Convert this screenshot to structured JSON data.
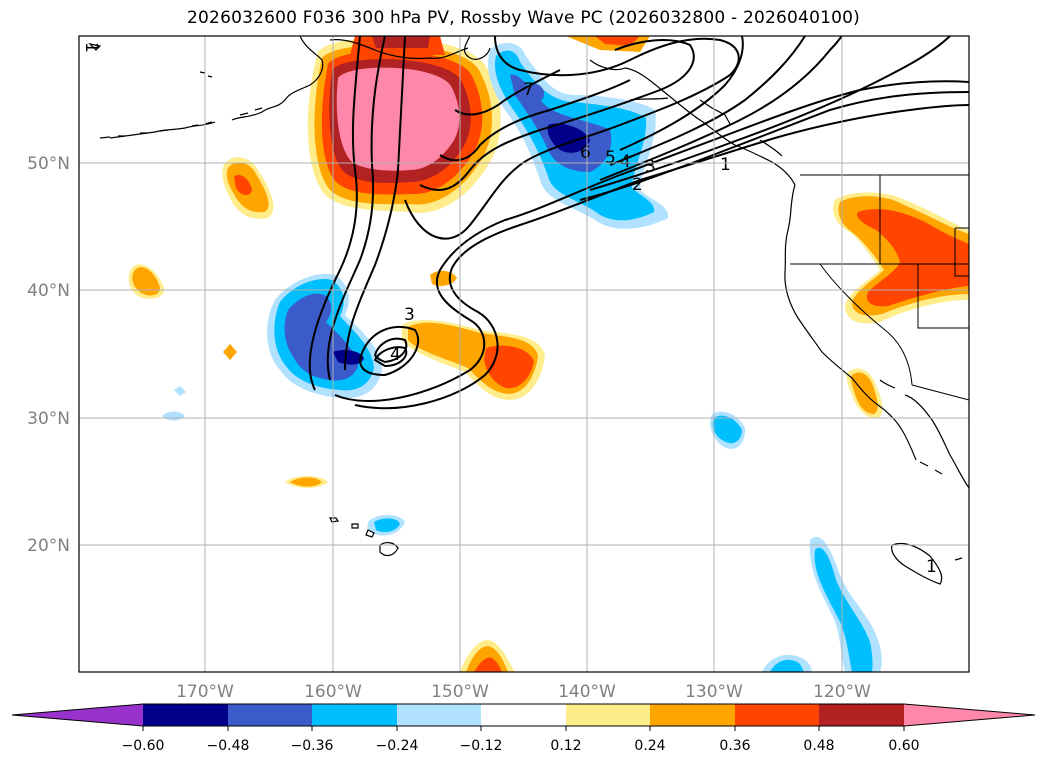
{
  "title": "2026032600 F036 300 hPa PV, Rossby Wave PC (2026032800 - 2026040100)",
  "lat_labels": [
    "50°N",
    "40°N",
    "30°N",
    "20°N"
  ],
  "lon_labels": [
    "170°W",
    "160°W",
    "150°W",
    "140°W",
    "130°W",
    "120°W"
  ],
  "colorbar": {
    "ticks": [
      "−0.60",
      "−0.48",
      "−0.36",
      "−0.24",
      "−0.12",
      "0.12",
      "0.24",
      "0.36",
      "0.48",
      "0.60"
    ],
    "colors": [
      "#9932cc",
      "#00008b",
      "#3a5bc9",
      "#00bfff",
      "#b0e2ff",
      "#ffffff",
      "#ffec8b",
      "#ffa500",
      "#ff4500",
      "#b22222",
      "#ff88aa"
    ]
  },
  "contour_labels": [
    "1",
    "2",
    "3",
    "4",
    "5",
    "6",
    "7",
    "3",
    "4",
    "1",
    "1"
  ],
  "chart_data": {
    "type": "map",
    "title": "2026032600 F036 300 hPa PV, Rossby Wave PC (2026032800 - 2026040100)",
    "lat_ticks": [
      50,
      40,
      30,
      20
    ],
    "lon_ticks": [
      -170,
      -160,
      -150,
      -140,
      -130,
      -120
    ],
    "colorbar_levels": [
      -0.6,
      -0.48,
      -0.36,
      -0.24,
      -0.12,
      0.12,
      0.24,
      0.36,
      0.48,
      0.6
    ],
    "contour_values_labeled": [
      1,
      2,
      3,
      4,
      5,
      6,
      7,
      3,
      4,
      1,
      1
    ]
  }
}
